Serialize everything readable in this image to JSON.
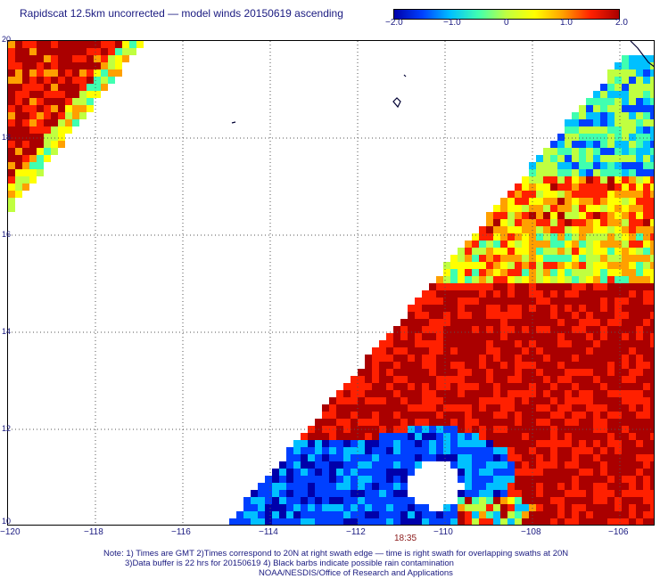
{
  "title": "Rapidscat 12.5km uncorrected — model winds 20150619 ascending",
  "colorbar": {
    "ticks": [
      "−2.0",
      "−1.0",
      "0",
      "1.0",
      "2.0"
    ],
    "min": -2.0,
    "max": 2.0,
    "colors": [
      "#0000aa",
      "#0040ff",
      "#00c0ff",
      "#40ffb0",
      "#c0ff40",
      "#ffff00",
      "#ffa000",
      "#ff2000",
      "#aa0000"
    ]
  },
  "axes": {
    "x_labels": [
      "−120",
      "−118",
      "−116",
      "−114",
      "−112",
      "−110",
      "−108",
      "−106"
    ],
    "y_labels": [
      "20",
      "18",
      "16",
      "14",
      "12",
      "10"
    ],
    "lon_range": [
      -120,
      -105.5
    ],
    "lat_range": [
      10,
      20
    ]
  },
  "swath_time": "18:35",
  "notes": {
    "line1": "Note: 1) Times are GMT 2)Times correspond to 20N at right swath edge — time is right swath for overlapping swaths at 20N",
    "line2": "3)Data buffer is 22 hrs for 20150619 4) Black barbs indicate possible rain contamination",
    "credit": "NOAA/NESDIS/Office of Research and Applications"
  }
}
